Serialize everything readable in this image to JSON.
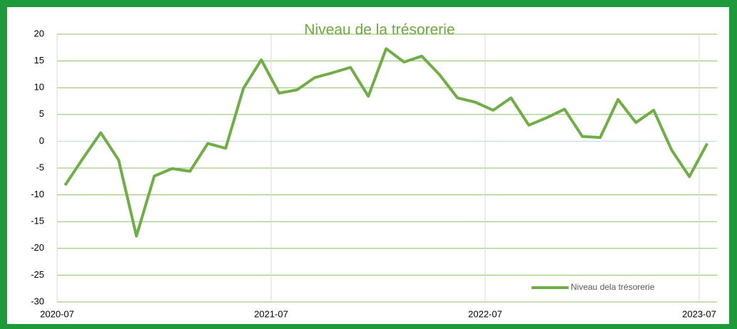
{
  "chart_data": {
    "type": "line",
    "title": "Niveau de la trésorerie",
    "x": [
      "2020-07",
      "2020-08",
      "2020-09",
      "2020-10",
      "2020-11",
      "2020-12",
      "2021-01",
      "2021-02",
      "2021-03",
      "2021-04",
      "2021-05",
      "2021-06",
      "2021-07",
      "2021-08",
      "2021-09",
      "2021-10",
      "2021-11",
      "2021-12",
      "2022-01",
      "2022-02",
      "2022-03",
      "2022-04",
      "2022-05",
      "2022-06",
      "2022-07",
      "2022-08",
      "2022-09",
      "2022-10",
      "2022-11",
      "2022-12",
      "2023-01",
      "2023-02",
      "2023-03",
      "2023-04",
      "2023-05",
      "2023-06",
      "2023-07"
    ],
    "series": [
      {
        "name": "Niveau dela trésorerie",
        "color": "#70ad47",
        "values": [
          -8.2,
          -3.2,
          1.6,
          -3.5,
          -17.7,
          -6.5,
          -5.1,
          -5.6,
          -0.4,
          -1.3,
          9.9,
          15.2,
          9.0,
          9.6,
          11.9,
          12.8,
          13.8,
          8.4,
          17.3,
          14.8,
          15.9,
          12.4,
          8.1,
          7.3,
          5.8,
          8.1,
          3.0,
          4.4,
          6.0,
          0.9,
          0.7,
          7.8,
          3.5,
          5.8,
          -1.6,
          -6.6,
          -0.4
        ]
      }
    ],
    "xlim": [
      "2020-07",
      "2023-08"
    ],
    "xticks": [
      "2020-07",
      "2021-07",
      "2022-07",
      "2023-07"
    ],
    "ylim": [
      -30,
      20
    ],
    "yticks": [
      -30,
      -25,
      -20,
      -15,
      -10,
      -5,
      0,
      5,
      10,
      15,
      20
    ],
    "grid": true,
    "legend": "bottom-right"
  }
}
